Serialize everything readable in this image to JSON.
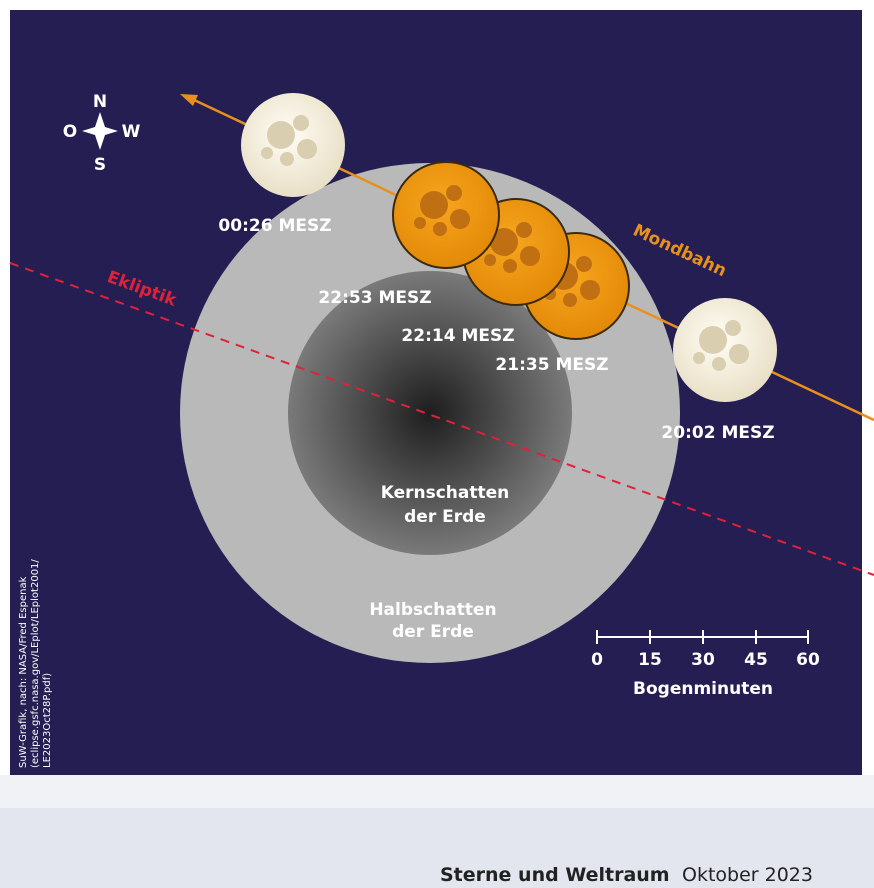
{
  "compass": {
    "n": "N",
    "s": "S",
    "o": "O",
    "w": "W"
  },
  "labels": {
    "ecliptic": "Ekliptik",
    "moon_orbit": "Mondbahn",
    "umbra": [
      "Kernschatten",
      "der Erde"
    ],
    "penumbra": [
      "Halbschatten",
      "der Erde"
    ]
  },
  "moons": [
    {
      "time": "00:26 MESZ"
    },
    {
      "time": "22:53 MESZ"
    },
    {
      "time": "22:14 MESZ"
    },
    {
      "time": "21:35 MESZ"
    },
    {
      "time": "20:02 MESZ"
    }
  ],
  "scale": {
    "ticks": [
      "0",
      "15",
      "30",
      "45",
      "60"
    ],
    "label": "Bogenminuten"
  },
  "credit": [
    "SuW-Grafik, nach: NASA/Fred Espenak",
    "(eclipse.gsfc.nasa.gov/LEplot/LEplot2001/",
    "LE2023Oct28P.pdf)"
  ],
  "footer": {
    "magazine": "Sterne und Weltraum",
    "issue": "Oktober 2023"
  }
}
